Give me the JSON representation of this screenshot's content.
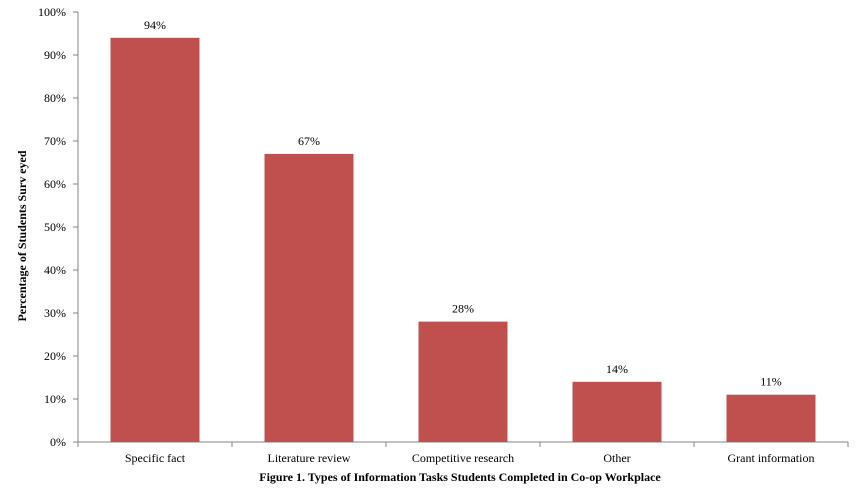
{
  "chart_data": {
    "type": "bar",
    "categories": [
      "Specific fact",
      "Literature review",
      "Competitive research",
      "Other",
      "Grant information"
    ],
    "values": [
      94,
      67,
      28,
      14,
      11
    ],
    "data_labels": [
      "94%",
      "67%",
      "28%",
      "14%",
      "11%"
    ],
    "title": "Figure 1. Types of Information Tasks Students  Completed in Co-op Workplace",
    "xlabel": "",
    "ylabel": "Percentage of Students  Surv eyed",
    "ylim": [
      0,
      100
    ],
    "yticks": [
      0,
      10,
      20,
      30,
      40,
      50,
      60,
      70,
      80,
      90,
      100
    ],
    "ytick_labels": [
      "0%",
      "10%",
      "20%",
      "30%",
      "40%",
      "50%",
      "60%",
      "70%",
      "80%",
      "90%",
      "100%"
    ],
    "grid": false,
    "legend": "none",
    "bar_color": "#c0504d",
    "axis_color": "#868686"
  }
}
